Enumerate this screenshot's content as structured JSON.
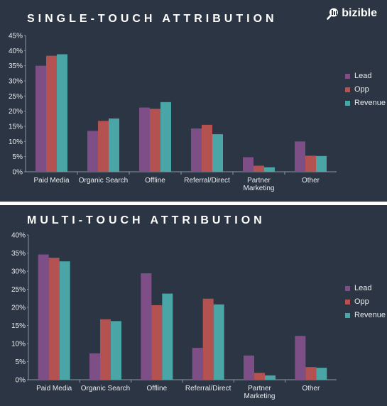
{
  "brand": {
    "logo_text": "bizible",
    "logo_icon": "magnifier-icon"
  },
  "colors": {
    "background": "#2b3543",
    "lead": "#7e4f87",
    "opp": "#b45252",
    "revenue": "#4aa6a6"
  },
  "chart_data": [
    {
      "type": "bar",
      "title": "SINGLE-TOUCH ATTRIBUTION",
      "categories": [
        "Paid Media",
        "Organic Search",
        "Offline",
        "Referral/Direct",
        "Partner\nMarketing",
        "Other"
      ],
      "series": [
        {
          "name": "Lead",
          "values": [
            35,
            13.5,
            21.2,
            14.3,
            4.8,
            10
          ]
        },
        {
          "name": "Opp",
          "values": [
            38.3,
            16.8,
            20.8,
            15.5,
            2,
            5.3
          ]
        },
        {
          "name": "Revenue",
          "values": [
            38.8,
            17.6,
            23,
            12.4,
            1.5,
            5.2
          ]
        }
      ],
      "ylim": [
        0,
        45
      ],
      "yticks": [
        "0%",
        "5%",
        "10%",
        "15%",
        "20%",
        "25%",
        "30%",
        "35%",
        "40%",
        "45%"
      ],
      "grid": false,
      "legend_position": "right"
    },
    {
      "type": "bar",
      "title": "MULTI-TOUCH ATTRIBUTION",
      "categories": [
        "Paid Media",
        "Organic Search",
        "Offline",
        "Referral/Direct",
        "Partner\nMarketing",
        "Other"
      ],
      "series": [
        {
          "name": "Lead",
          "values": [
            34.6,
            7.3,
            29.4,
            8.8,
            6.7,
            12.1
          ]
        },
        {
          "name": "Opp",
          "values": [
            33.7,
            16.7,
            20.6,
            22.4,
            1.9,
            3.5
          ]
        },
        {
          "name": "Revenue",
          "values": [
            32.7,
            16.2,
            23.8,
            20.8,
            1.2,
            3.3
          ]
        }
      ],
      "ylim": [
        0,
        40
      ],
      "yticks": [
        "0%",
        "5%",
        "10%",
        "15%",
        "20%",
        "25%",
        "30%",
        "35%",
        "40%"
      ],
      "grid": false,
      "legend_position": "right"
    }
  ]
}
